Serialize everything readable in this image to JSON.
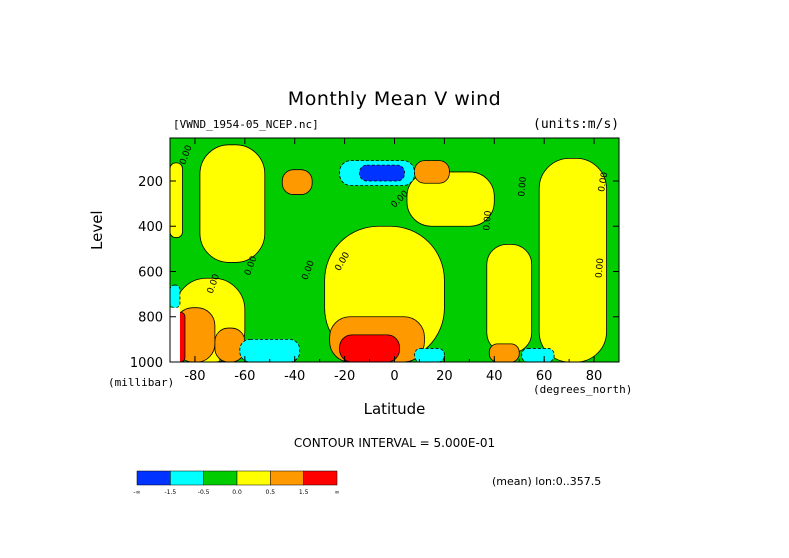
{
  "chart_data": {
    "type": "heatmap",
    "title": "Monthly Mean V wind",
    "source_label": "[VWND_1954-05_NCEP.nc]",
    "units_label": "(units:m/s)",
    "ylabel": "Level",
    "y_unit": "(millibar)",
    "xlabel": "Latitude",
    "x_unit": "(degrees_north)",
    "contour_interval": "CONTOUR INTERVAL = 5.000E-01",
    "mean_label": "(mean) lon:0..357.5",
    "xlim": [
      -90,
      90
    ],
    "ylim": [
      1000,
      10
    ],
    "x_ticks": [
      -80,
      -60,
      -40,
      -20,
      0,
      20,
      40,
      60,
      80
    ],
    "y_ticks": [
      200,
      400,
      600,
      800,
      1000
    ],
    "contour_labels": [
      "0.00"
    ],
    "colorbar": {
      "colors": [
        "#0033ff",
        "#00ffff",
        "#00cc00",
        "#ffff00",
        "#ff9900",
        "#ff0000"
      ],
      "tick_labels": [
        "-∞",
        "-1.5",
        "-0.5",
        "0.0",
        "0.5",
        "1.5",
        "∞"
      ]
    },
    "regions": [
      {
        "level": "green",
        "x": [
          -90,
          90
        ],
        "y": [
          10,
          1000
        ]
      },
      {
        "level": "yellow",
        "x": [
          -78,
          -52
        ],
        "y": [
          40,
          560
        ]
      },
      {
        "level": "yellow",
        "x": [
          -28,
          20
        ],
        "y": [
          400,
          1000
        ]
      },
      {
        "level": "yellow",
        "x": [
          5,
          40
        ],
        "y": [
          160,
          400
        ]
      },
      {
        "level": "yellow",
        "x": [
          37,
          55
        ],
        "y": [
          480,
          960
        ]
      },
      {
        "level": "yellow",
        "x": [
          58,
          85
        ],
        "y": [
          100,
          1000
        ]
      },
      {
        "level": "yellow",
        "x": [
          -90,
          -85
        ],
        "y": [
          120,
          450
        ]
      },
      {
        "level": "yellow",
        "x": [
          -88,
          -60
        ],
        "y": [
          630,
          1000
        ]
      },
      {
        "level": "orange",
        "x": [
          -45,
          -33
        ],
        "y": [
          150,
          260
        ]
      },
      {
        "level": "orange",
        "x": [
          -88,
          -72
        ],
        "y": [
          760,
          1000
        ]
      },
      {
        "level": "orange",
        "x": [
          -72,
          -60
        ],
        "y": [
          850,
          1000
        ]
      },
      {
        "level": "orange",
        "x": [
          -26,
          12
        ],
        "y": [
          800,
          1000
        ]
      },
      {
        "level": "orange",
        "x": [
          8,
          22
        ],
        "y": [
          110,
          210
        ]
      },
      {
        "level": "orange",
        "x": [
          38,
          50
        ],
        "y": [
          920,
          1000
        ]
      },
      {
        "level": "red",
        "x": [
          -22,
          2
        ],
        "y": [
          880,
          1000
        ]
      },
      {
        "level": "red",
        "x": [
          -88,
          -84
        ],
        "y": [
          780,
          1000
        ]
      },
      {
        "level": "cyan",
        "x": [
          -22,
          8
        ],
        "y": [
          110,
          220
        ]
      },
      {
        "level": "cyan",
        "x": [
          -62,
          -38
        ],
        "y": [
          900,
          1000
        ]
      },
      {
        "level": "cyan",
        "x": [
          8,
          20
        ],
        "y": [
          940,
          1000
        ]
      },
      {
        "level": "cyan",
        "x": [
          51,
          64
        ],
        "y": [
          940,
          1000
        ]
      },
      {
        "level": "cyan",
        "x": [
          -90,
          -86
        ],
        "y": [
          660,
          760
        ]
      },
      {
        "level": "blue",
        "x": [
          -14,
          4
        ],
        "y": [
          130,
          200
        ]
      },
      {
        "level": "white",
        "x": [
          -90,
          -86
        ],
        "y": [
          760,
          1000
        ]
      }
    ]
  }
}
